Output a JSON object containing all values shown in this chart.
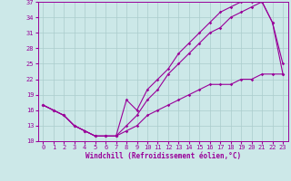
{
  "xlabel": "Windchill (Refroidissement éolien,°C)",
  "xlim": [
    -0.5,
    23.5
  ],
  "ylim": [
    10,
    37
  ],
  "xticks": [
    0,
    1,
    2,
    3,
    4,
    5,
    6,
    7,
    8,
    9,
    10,
    11,
    12,
    13,
    14,
    15,
    16,
    17,
    18,
    19,
    20,
    21,
    22,
    23
  ],
  "yticks": [
    10,
    13,
    16,
    19,
    22,
    25,
    28,
    31,
    34,
    37
  ],
  "bg_color": "#cce8e8",
  "grid_color": "#aacccc",
  "line_color": "#990099",
  "upper_x": [
    0,
    1,
    2,
    3,
    4,
    5,
    6,
    7,
    8,
    9,
    10,
    11,
    12,
    13,
    14,
    15,
    16,
    17,
    18,
    19,
    20,
    21,
    22,
    23
  ],
  "upper_y": [
    17,
    16,
    15,
    13,
    12,
    11,
    11,
    11,
    18,
    16,
    20,
    22,
    24,
    27,
    29,
    31,
    33,
    35,
    36,
    37,
    37,
    37,
    33,
    25
  ],
  "mid_x": [
    0,
    1,
    2,
    3,
    4,
    5,
    6,
    7,
    8,
    9,
    10,
    11,
    12,
    13,
    14,
    15,
    16,
    17,
    18,
    19,
    20,
    21,
    22,
    23
  ],
  "mid_y": [
    17,
    16,
    15,
    13,
    12,
    11,
    11,
    11,
    13,
    15,
    18,
    20,
    23,
    25,
    27,
    29,
    31,
    32,
    34,
    35,
    36,
    37,
    33,
    23
  ],
  "lower_x": [
    0,
    1,
    2,
    3,
    4,
    5,
    6,
    7,
    8,
    9,
    10,
    11,
    12,
    13,
    14,
    15,
    16,
    17,
    18,
    19,
    20,
    21,
    22,
    23
  ],
  "lower_y": [
    17,
    16,
    15,
    13,
    12,
    11,
    11,
    11,
    12,
    13,
    15,
    16,
    17,
    18,
    19,
    20,
    21,
    21,
    21,
    22,
    22,
    23,
    23,
    23
  ]
}
